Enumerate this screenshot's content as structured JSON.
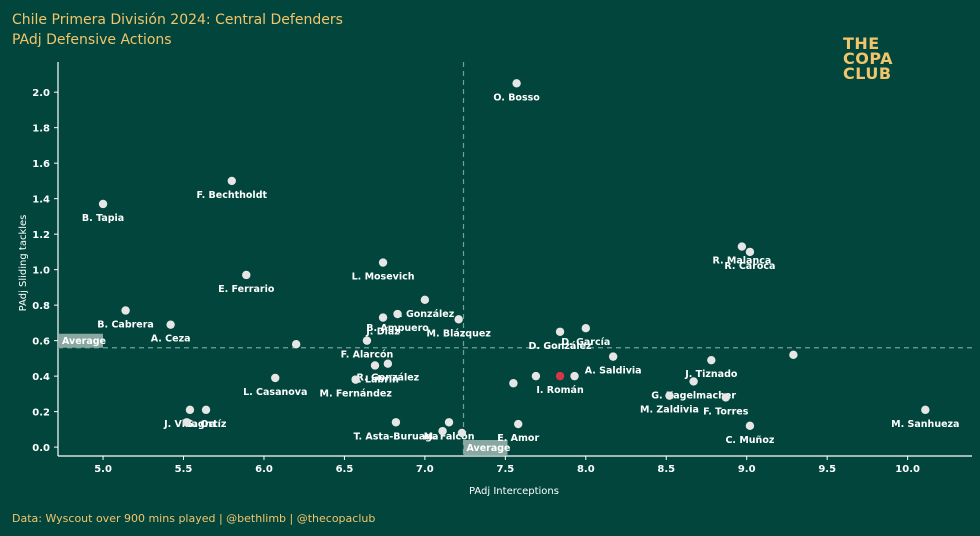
{
  "header": {
    "title": "Chile Primera División 2024: Central Defenders",
    "subtitle": "PAdj Defensive Actions"
  },
  "logo": {
    "line1": "THE",
    "line2": "COPA",
    "line3": "CLUB"
  },
  "footer": {
    "source": "Data: Wyscout over 900 mins played | @bethlimb | @thecopaclub"
  },
  "colors": {
    "background": "#02453c",
    "accent": "#f2c56b",
    "point": "#e6e6e6",
    "highlight": "#d9344a",
    "average_line": "#6fa39a"
  },
  "chart_data": {
    "type": "scatter",
    "xlabel": "PAdj Interceptions",
    "ylabel": "PAdj Sliding tackles",
    "xlim": [
      4.72,
      10.4
    ],
    "ylim": [
      -0.05,
      2.17
    ],
    "xticks": [
      "5.0",
      "5.5",
      "6.0",
      "6.5",
      "7.0",
      "7.5",
      "8.0",
      "8.5",
      "9.0",
      "9.5",
      "10.0"
    ],
    "yticks": [
      "0.0",
      "0.2",
      "0.4",
      "0.6",
      "0.8",
      "1.0",
      "1.2",
      "1.4",
      "1.6",
      "1.8",
      "2.0"
    ],
    "grid": false,
    "average_x": 7.24,
    "average_y": 0.56,
    "average_label_x": "Average",
    "average_label_y": "Average",
    "points": [
      {
        "name": "O. Bosso",
        "x": 7.57,
        "y": 2.05
      },
      {
        "name": "F. Bechtholdt",
        "x": 5.8,
        "y": 1.5
      },
      {
        "name": "B. Tapia",
        "x": 5.0,
        "y": 1.37
      },
      {
        "name": "R. Malanca",
        "x": 8.97,
        "y": 1.13
      },
      {
        "name": "R. Caroca",
        "x": 9.02,
        "y": 1.1
      },
      {
        "name": "L. Mosevich",
        "x": 6.74,
        "y": 1.04
      },
      {
        "name": "E. Ferrario",
        "x": 5.89,
        "y": 0.97
      },
      {
        "name": "I. González",
        "x": 7.0,
        "y": 0.83
      },
      {
        "name": "B. Ampuero",
        "x": 6.83,
        "y": 0.75
      },
      {
        "name": "J. Díaz",
        "x": 6.74,
        "y": 0.73
      },
      {
        "name": "M. Blázquez",
        "x": 7.21,
        "y": 0.72
      },
      {
        "name": "B. Cabrera",
        "x": 5.14,
        "y": 0.77
      },
      {
        "name": "A. Ceza",
        "x": 5.42,
        "y": 0.69
      },
      {
        "name": "D. García",
        "x": 8.0,
        "y": 0.67
      },
      {
        "name": "D. González",
        "x": 7.84,
        "y": 0.65
      },
      {
        "name": "F. Alarcón",
        "x": 6.64,
        "y": 0.6
      },
      {
        "name": "",
        "x": 6.2,
        "y": 0.58
      },
      {
        "name": "J. Tiznado",
        "x": 8.78,
        "y": 0.49
      },
      {
        "name": "",
        "x": 9.29,
        "y": 0.52
      },
      {
        "name": "A. Saldivia",
        "x": 8.17,
        "y": 0.51
      },
      {
        "name": "C. Labrín",
        "x": 6.69,
        "y": 0.46
      },
      {
        "name": "R. González",
        "x": 6.77,
        "y": 0.47
      },
      {
        "name": "I. Román",
        "x": 7.84,
        "y": 0.4,
        "highlight": true
      },
      {
        "name": "",
        "x": 7.69,
        "y": 0.4
      },
      {
        "name": "",
        "x": 7.93,
        "y": 0.4
      },
      {
        "name": "",
        "x": 7.55,
        "y": 0.36
      },
      {
        "name": "L. Casanova",
        "x": 6.07,
        "y": 0.39
      },
      {
        "name": "M. Fernández",
        "x": 6.57,
        "y": 0.38
      },
      {
        "name": "G. Kagelmacher",
        "x": 8.67,
        "y": 0.37
      },
      {
        "name": "M. Zaldivia",
        "x": 8.52,
        "y": 0.29
      },
      {
        "name": "F. Torres",
        "x": 8.87,
        "y": 0.28
      },
      {
        "name": "J. Villagra",
        "x": 5.54,
        "y": 0.21
      },
      {
        "name": "G. Ortíz",
        "x": 5.64,
        "y": 0.21
      },
      {
        "name": "",
        "x": 5.52,
        "y": 0.14
      },
      {
        "name": "M. Falcón",
        "x": 7.15,
        "y": 0.14
      },
      {
        "name": "T. Asta-Buruaga",
        "x": 6.82,
        "y": 0.14
      },
      {
        "name": "E. Amor",
        "x": 7.58,
        "y": 0.13
      },
      {
        "name": "C. Muñoz",
        "x": 9.02,
        "y": 0.12
      },
      {
        "name": "M. Sanhueza",
        "x": 10.11,
        "y": 0.21
      },
      {
        "name": "",
        "x": 7.11,
        "y": 0.09
      },
      {
        "name": "",
        "x": 7.23,
        "y": 0.08
      }
    ]
  }
}
